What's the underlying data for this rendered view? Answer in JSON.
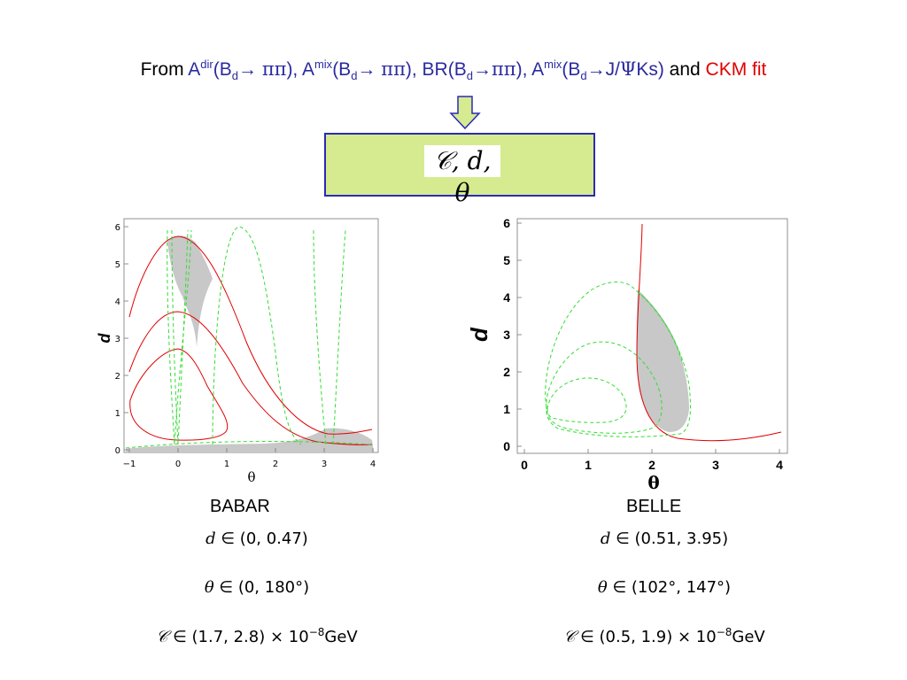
{
  "title": {
    "prefix": "From ",
    "a_dir": "A",
    "a_dir_sup": "dir",
    "seg1_open": "(B",
    "b_sub": "d",
    "seg1_arrow": "→ ",
    "pipi": "ππ",
    "seg1_close": "), ",
    "a_mix": "A",
    "a_mix_sup": "mix",
    "seg2_close": "), ",
    "br": "BR(B",
    "arrow_tight": "→",
    "seg3_close": "), ",
    "jpsi_arrow": "→J/",
    "psi": "Ψ",
    "ks": "Ks)",
    "and": " and ",
    "ckm": "CKM fit"
  },
  "box": {
    "formula": "𝒞, d, θ",
    "fill": "#d6eb8f",
    "border": "#2a2ab8"
  },
  "colors": {
    "title_blue": "#2a2aa0",
    "title_red": "#e00000",
    "contour_red": "#e00000",
    "contour_green": "#33dd33",
    "region_gray": "#c8c8c8",
    "arrow_fill": "#d6eb8f"
  },
  "babar": {
    "label": "BABAR",
    "y_axis_label": "d",
    "x_axis_label": "θ",
    "x_ticks": [
      "−1",
      "0",
      "1",
      "2",
      "3",
      "4"
    ],
    "y_ticks": [
      "0",
      "1",
      "2",
      "3",
      "4",
      "5",
      "6"
    ],
    "results": {
      "d_sym": "d",
      "d_range": " ∈ (0, 0.47)",
      "theta_sym": "θ",
      "theta_range": " ∈ (0, 180°)",
      "c_sym": "𝒞",
      "c_range": " ∈ (1.7, 2.8) × 10",
      "c_exp": "−8",
      "c_unit": "GeV"
    }
  },
  "belle": {
    "label": "BELLE",
    "y_axis_label": "d",
    "x_axis_label": "θ",
    "x_ticks": [
      "0",
      "1",
      "2",
      "3",
      "4"
    ],
    "y_ticks": [
      "0",
      "1",
      "2",
      "3",
      "4",
      "5",
      "6"
    ],
    "results": {
      "d_sym": "d",
      "d_range": " ∈ (0.51, 3.95)",
      "theta_sym": "θ",
      "theta_range": " ∈ (102°, 147°)",
      "c_sym": "𝒞",
      "c_range": " ∈ (0.5, 1.9) × 10",
      "c_exp": "−8",
      "c_unit": "GeV"
    }
  }
}
